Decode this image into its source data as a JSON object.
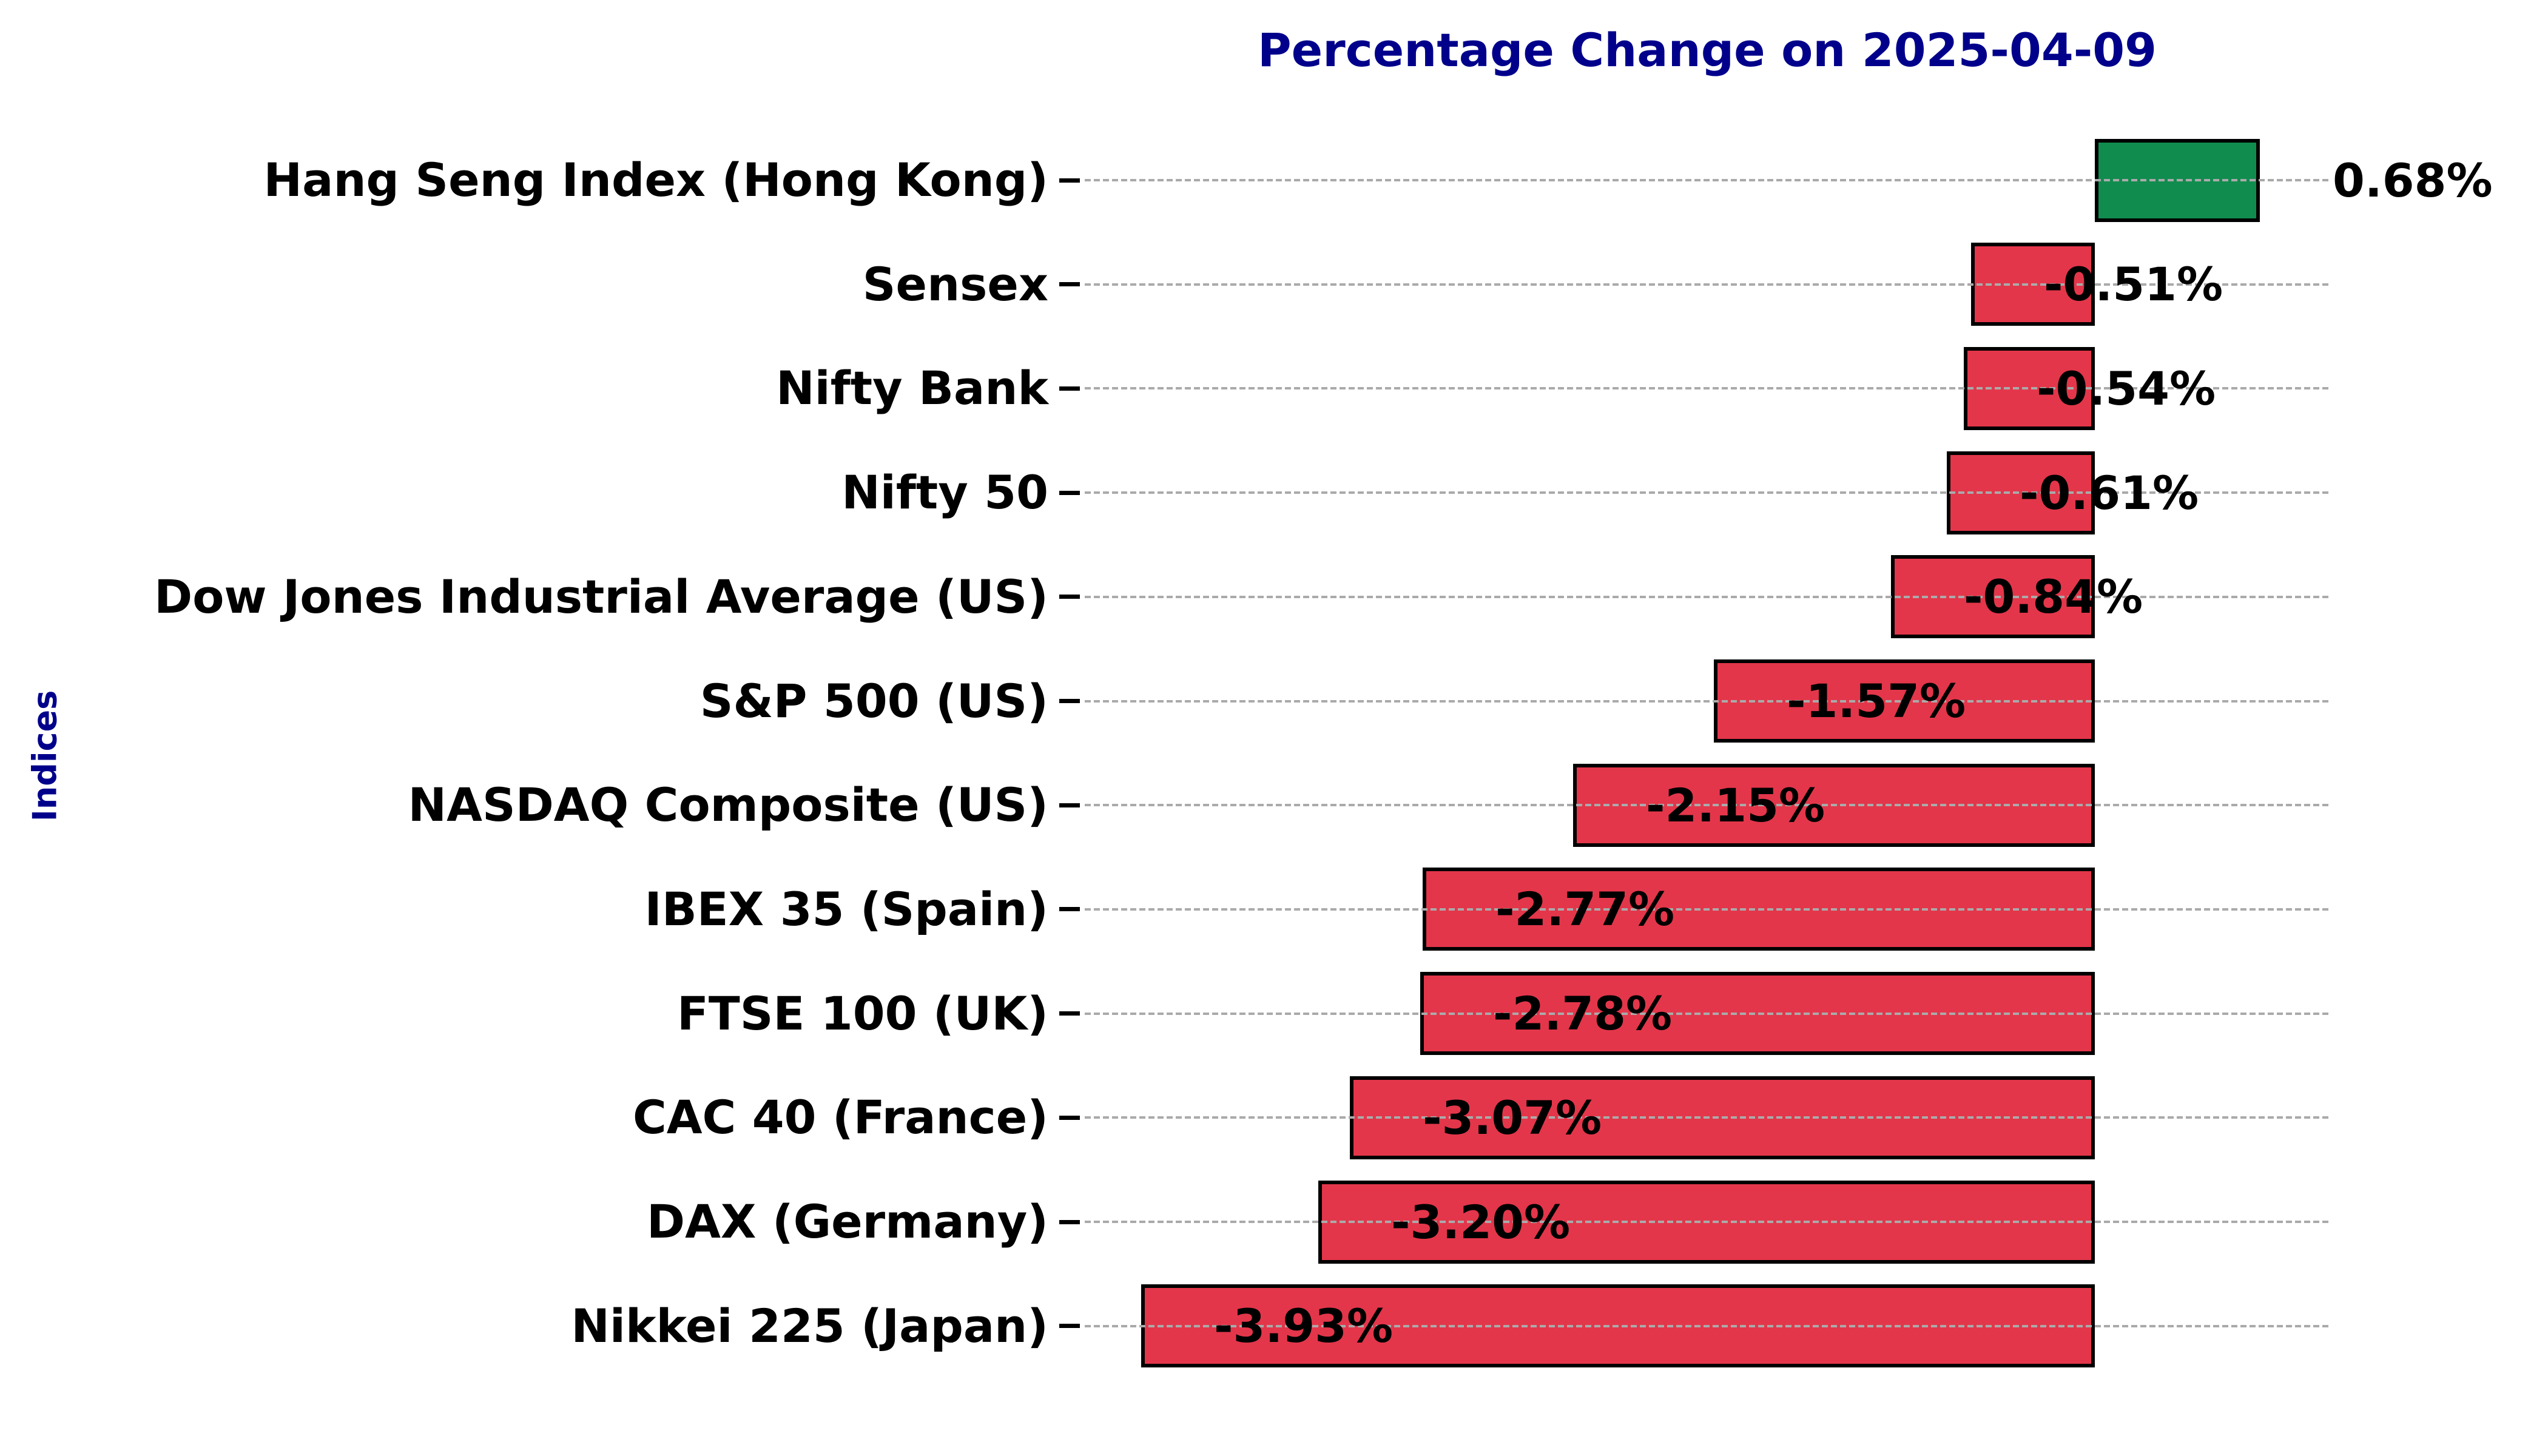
{
  "title": {
    "text": "Percentage Change on 2025-04-09",
    "color": "#00008B"
  },
  "y_axis": {
    "label": "Indices",
    "color": "#00008B"
  },
  "chart_data": {
    "type": "bar",
    "orientation": "horizontal",
    "title": "Percentage Change on 2025-04-09",
    "ylabel": "Indices",
    "xlabel": "",
    "categories": [
      "Hang Seng Index (Hong Kong)",
      "Sensex",
      "Nifty Bank",
      "Nifty 50",
      "Dow Jones Industrial Average (US)",
      "S&P 500 (US)",
      "NASDAQ Composite (US)",
      "IBEX 35 (Spain)",
      "FTSE 100 (UK)",
      "CAC 40 (France)",
      "DAX (Germany)",
      "Nikkei 225 (Japan)"
    ],
    "values": [
      0.68,
      -0.51,
      -0.54,
      -0.61,
      -0.84,
      -1.57,
      -2.15,
      -2.77,
      -2.78,
      -3.07,
      -3.2,
      -3.93
    ],
    "value_labels": [
      "0.68%",
      "-0.51%",
      "-0.54%",
      "-0.61%",
      "-0.84%",
      "-1.57%",
      "-2.15%",
      "-2.77%",
      "-2.78%",
      "-3.07%",
      "-3.20%",
      "-3.93%"
    ],
    "xlim": [
      -4.16,
      0.91
    ],
    "grid": {
      "axis": "y",
      "style": "dashed",
      "color": "#aaaaaa"
    },
    "legend_position": "none",
    "colors": {
      "positive": "#108C4E",
      "negative": "#E3364A",
      "edge": "#000000"
    }
  }
}
